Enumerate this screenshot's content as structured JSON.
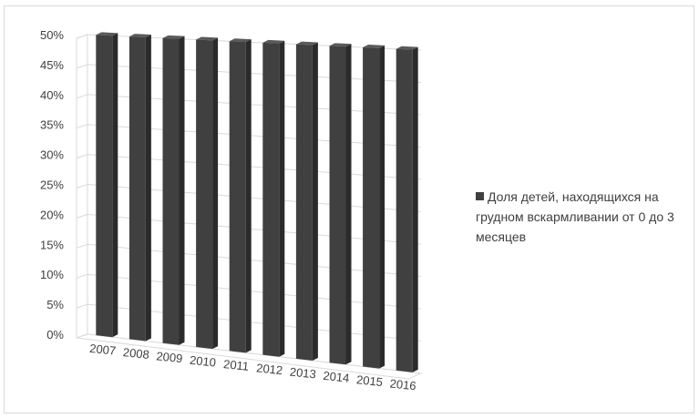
{
  "chart_data": {
    "type": "bar",
    "title": "",
    "xlabel": "",
    "ylabel": "",
    "categories": [
      "2007",
      "2008",
      "2009",
      "2010",
      "2011",
      "2012",
      "2013",
      "2014",
      "2015",
      "2016"
    ],
    "series": [
      {
        "name": "Доля детей, находящихся на грудном вскармливании от 0 до 3 месяцев",
        "values": [
          50,
          50,
          50,
          50,
          50,
          50,
          50,
          50,
          50,
          50
        ],
        "color": "#404040"
      }
    ],
    "ylim": [
      0,
      50
    ],
    "yticks": [
      "0%",
      "5%",
      "10%",
      "15%",
      "20%",
      "25%",
      "30%",
      "35%",
      "40%",
      "45%",
      "50%"
    ],
    "grid": true,
    "legend_position": "right",
    "style": "3d-perspective"
  },
  "legend": {
    "label": "Доля детей, находящихся на грудном вскармливании от 0 до 3 месяцев"
  }
}
